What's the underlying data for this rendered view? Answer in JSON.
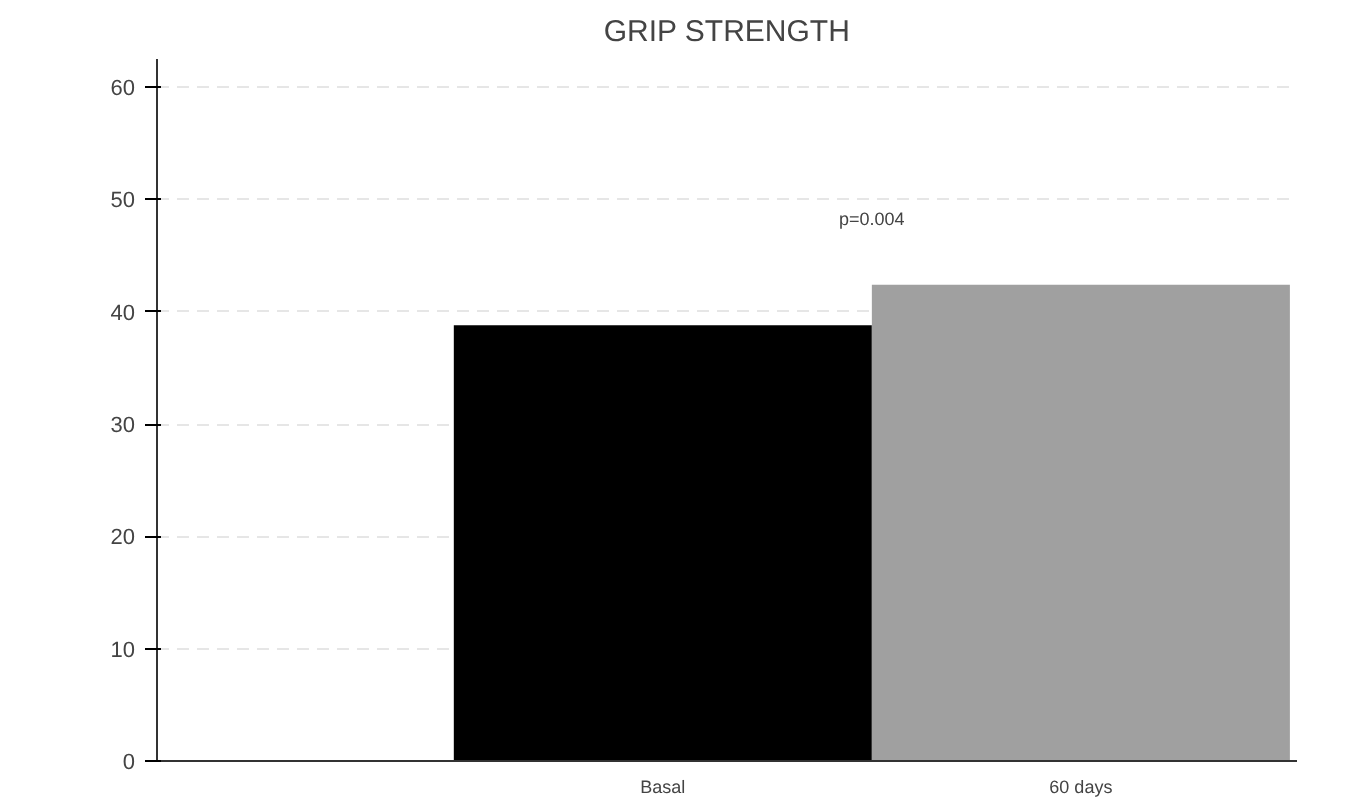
{
  "chart_data": {
    "type": "bar",
    "title": "GRIP STRENGTH",
    "categories": [
      "Basal",
      "60 days"
    ],
    "values": [
      38.8,
      42.4
    ],
    "colors": [
      "#000000",
      "#a0a0a0"
    ],
    "ylim": [
      0,
      62.5
    ],
    "yticks": [
      0,
      10,
      20,
      30,
      40,
      50,
      60
    ],
    "grid": "y",
    "annotations": [
      "p=0.004"
    ]
  }
}
